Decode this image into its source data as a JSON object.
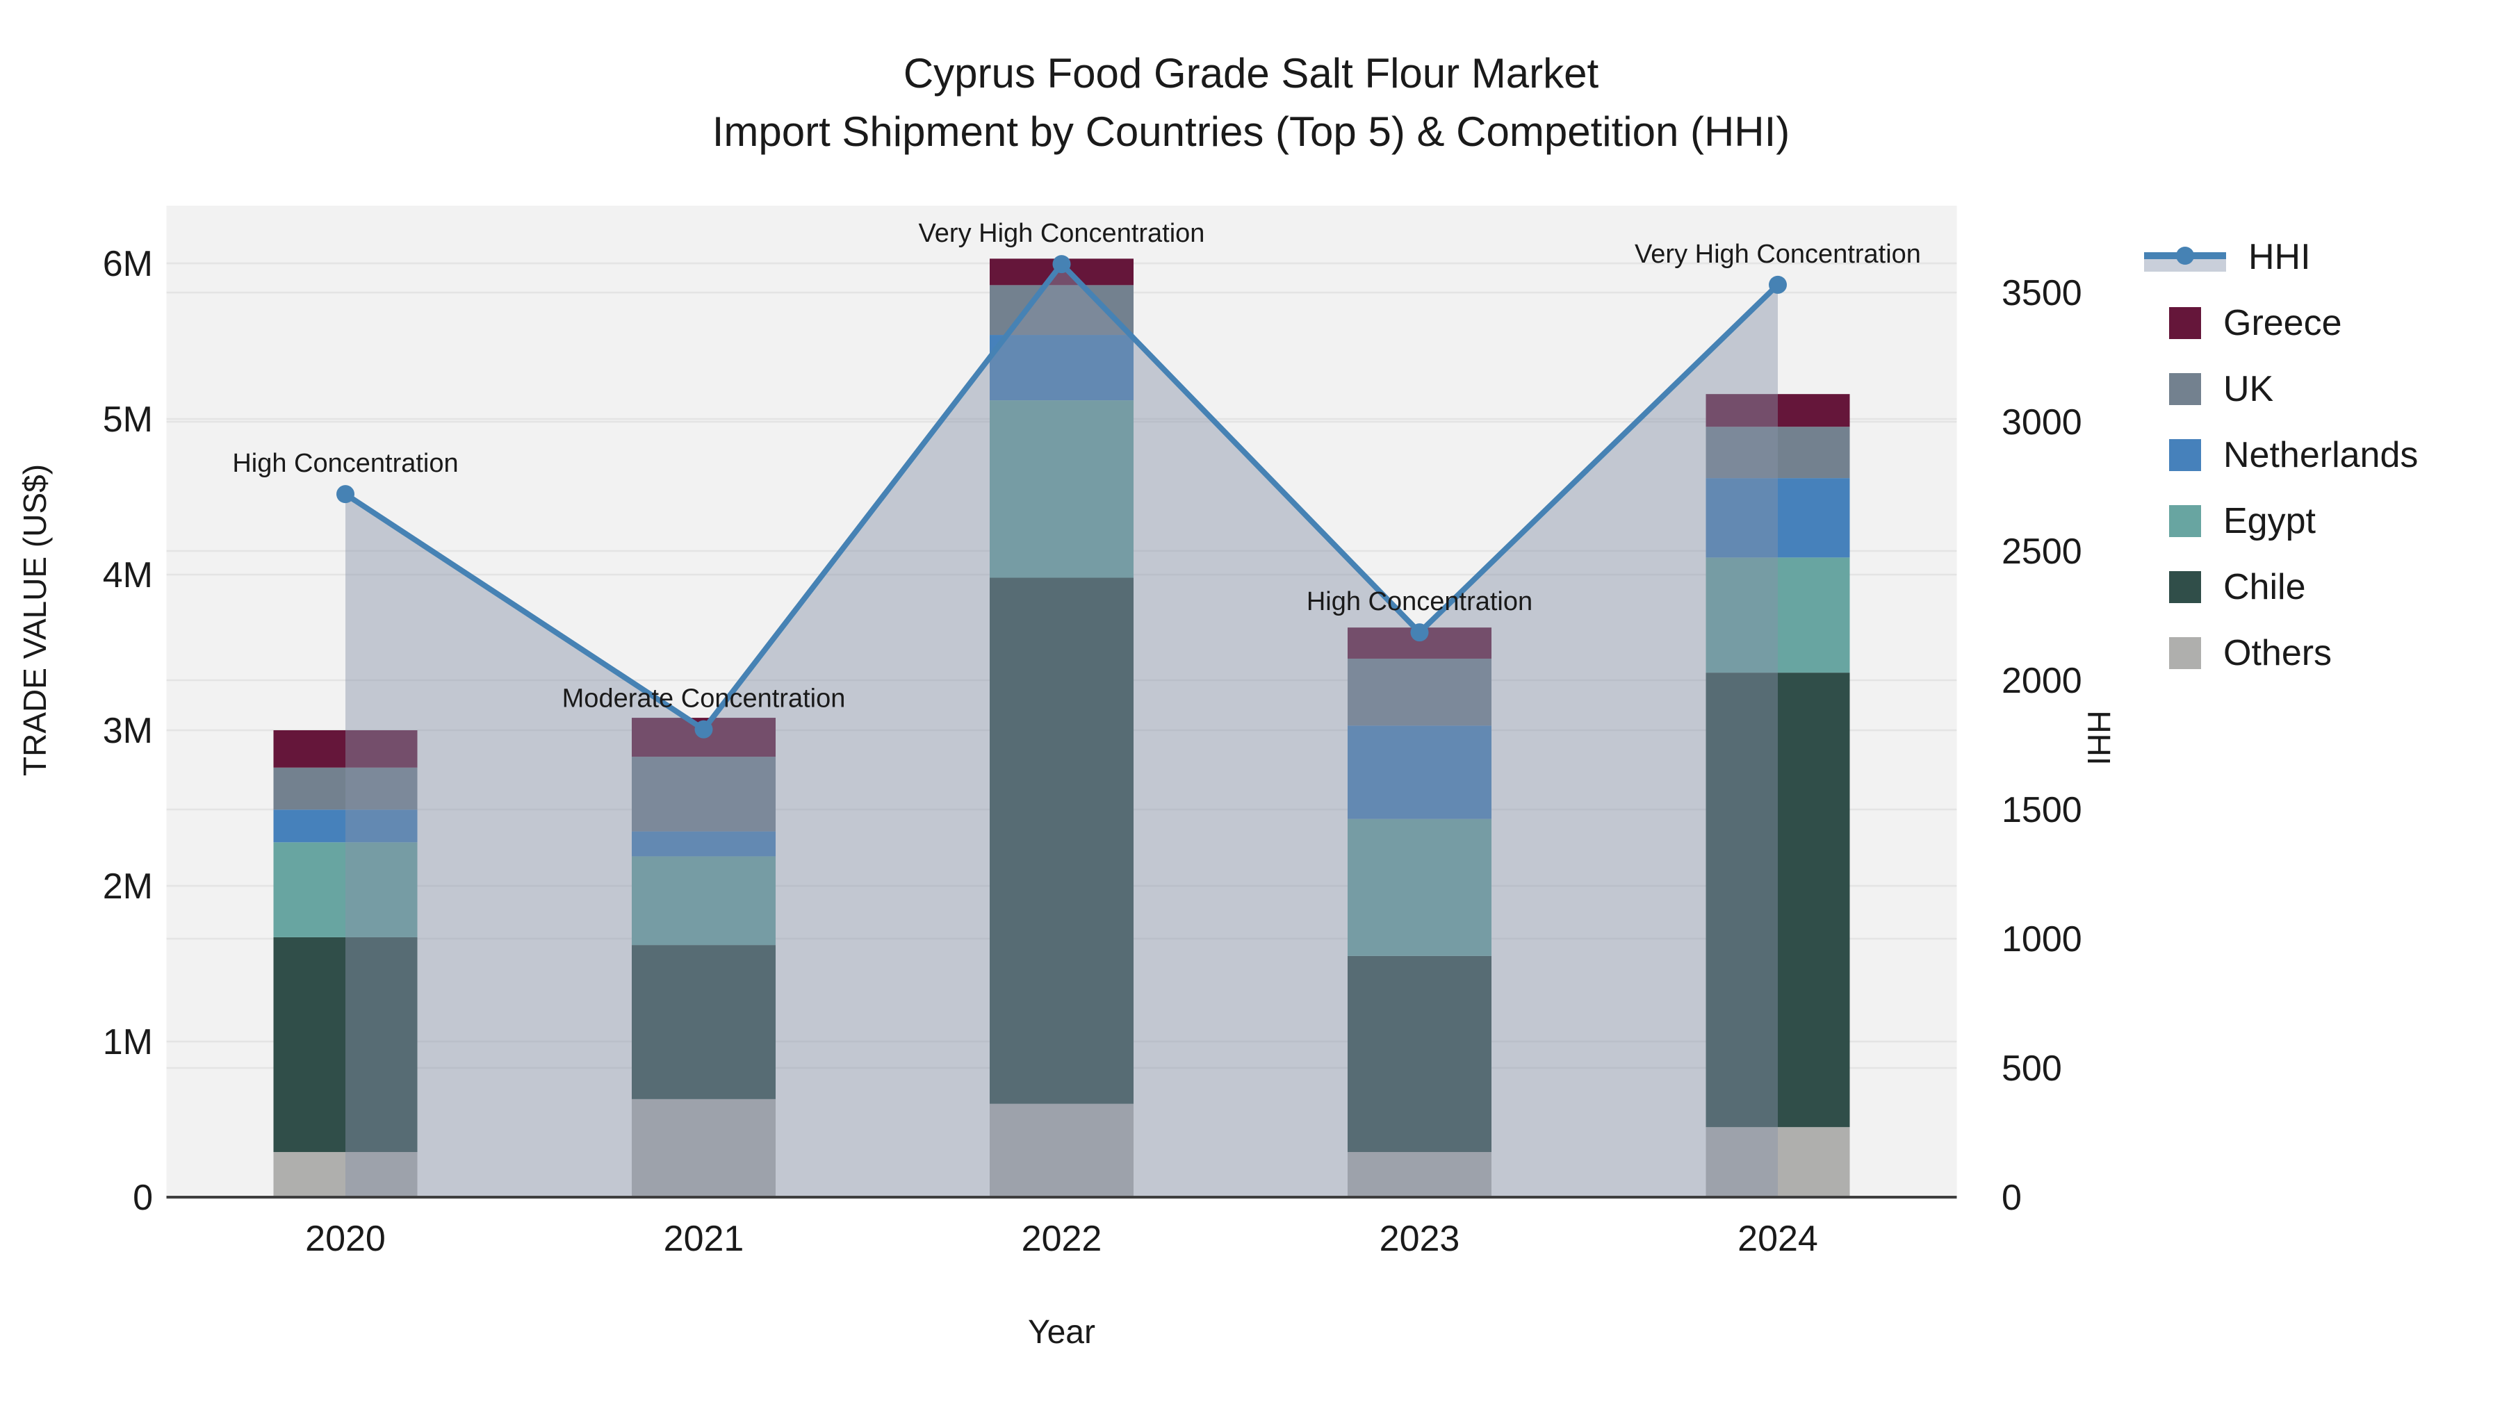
{
  "title": {
    "line1": "Cyprus Food Grade Salt Flour Market",
    "line2": "Import Shipment by Countries (Top 5) & Competition (HHI)"
  },
  "axes": {
    "y_left_title": "TRADE VALUE (US$)",
    "y_left_ticks": [
      "0",
      "1M",
      "2M",
      "3M",
      "4M",
      "5M",
      "6M"
    ],
    "y_right_title": "HHI",
    "y_right_ticks": [
      "0",
      "500",
      "1000",
      "1500",
      "2000",
      "2500",
      "3000",
      "3500"
    ],
    "x_title": "Year",
    "x_ticks": [
      "2020",
      "2021",
      "2022",
      "2023",
      "2024"
    ]
  },
  "legend": {
    "items": [
      {
        "label": "HHI",
        "type": "line"
      },
      {
        "label": "Greece",
        "type": "swatch",
        "color": "#65163A"
      },
      {
        "label": "UK",
        "type": "swatch",
        "color": "#73818F"
      },
      {
        "label": "Netherlands",
        "type": "swatch",
        "color": "#4681BB"
      },
      {
        "label": "Egypt",
        "type": "swatch",
        "color": "#68A5A1"
      },
      {
        "label": "Chile",
        "type": "swatch",
        "color": "#304E49"
      },
      {
        "label": "Others",
        "type": "swatch",
        "color": "#AFAFAD"
      }
    ]
  },
  "annotations": [
    {
      "text": "High Concentration",
      "year": "2020",
      "hhi": 2720
    },
    {
      "text": "Moderate Concentration",
      "year": "2021",
      "hhi": 1810
    },
    {
      "text": "Very High Concentration",
      "year": "2022",
      "hhi": 3610
    },
    {
      "text": "High Concentration",
      "year": "2023",
      "hhi": 2185
    },
    {
      "text": "Very High Concentration",
      "year": "2024",
      "hhi": 3530
    }
  ],
  "colors": {
    "panel": "#F2F2F2",
    "grid": "#E4E4E4",
    "axis_line": "#3F3F3F",
    "text": "#1A1A1A",
    "hhi_line": "#4682B4",
    "hhi_fill": "rgba(136,147,169,0.45)"
  },
  "chart_data": {
    "type": "combo: stacked-bar (left axis, trade value US$) + line-with-area (right axis, HHI)",
    "categories": [
      "2020",
      "2021",
      "2022",
      "2023",
      "2024"
    ],
    "unit": "million US$",
    "series": [
      {
        "name": "Others",
        "stack_order": 1,
        "color": "#AFAFAD",
        "values": [
          0.29,
          0.63,
          0.6,
          0.29,
          0.45
        ]
      },
      {
        "name": "Chile",
        "stack_order": 2,
        "color": "#304E49",
        "values": [
          1.38,
          0.99,
          3.38,
          1.26,
          2.92
        ]
      },
      {
        "name": "Egypt",
        "stack_order": 3,
        "color": "#68A5A1",
        "values": [
          0.61,
          0.57,
          1.14,
          0.88,
          0.74
        ]
      },
      {
        "name": "Netherlands",
        "stack_order": 4,
        "color": "#4681BB",
        "values": [
          0.21,
          0.16,
          0.42,
          0.6,
          0.51
        ]
      },
      {
        "name": "UK",
        "stack_order": 5,
        "color": "#73818F",
        "values": [
          0.27,
          0.48,
          0.32,
          0.43,
          0.33
        ]
      },
      {
        "name": "Greece",
        "stack_order": 6,
        "color": "#65163A",
        "values": [
          0.24,
          0.25,
          0.17,
          0.2,
          0.21
        ]
      }
    ],
    "stack_totals": [
      3.0,
      3.08,
      6.03,
      3.66,
      5.16
    ],
    "hhi_series": {
      "name": "HHI",
      "axis": "right",
      "values": [
        2720,
        1810,
        3610,
        2185,
        3530
      ]
    },
    "ylim_left": [
      0,
      6370000
    ],
    "ylim_right": [
      0,
      3836
    ],
    "grid": "horizontal only, both axes",
    "legend_position": "right"
  }
}
